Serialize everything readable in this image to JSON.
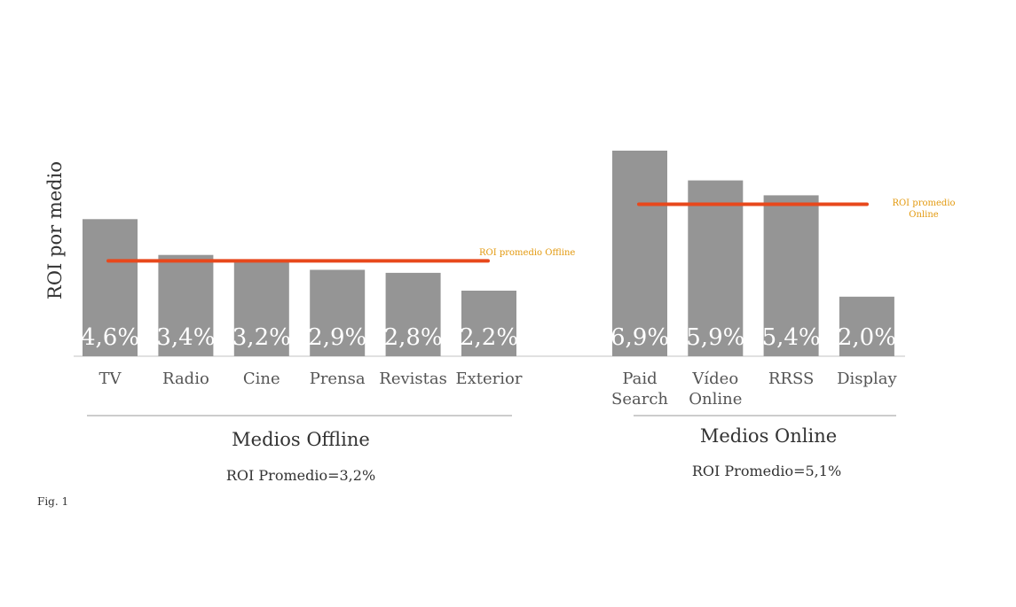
{
  "chart_data": {
    "type": "bar",
    "ylabel": "ROI por medio",
    "caption": "Fig. 1",
    "groups": [
      {
        "name": "Medios Offline",
        "average_label": "ROI Promedio=3,2%",
        "average_line_label": [
          "ROI promedio Offline"
        ],
        "average_value": 3.2,
        "categories": [
          [
            "TV"
          ],
          [
            "Radio"
          ],
          [
            "Cine"
          ],
          [
            "Prensa"
          ],
          [
            "Revistas"
          ],
          [
            "Exterior"
          ]
        ],
        "values": [
          4.6,
          3.4,
          3.2,
          2.9,
          2.8,
          2.2
        ],
        "value_labels": [
          "4,6%",
          "3,4%",
          "3,2%",
          "2,9%",
          "2,8%",
          "2,2%"
        ]
      },
      {
        "name": "Medios Online",
        "average_label": "ROI Promedio=5,1%",
        "average_line_label": [
          "ROI promedio",
          "Online"
        ],
        "average_value": 5.1,
        "categories": [
          [
            "Paid",
            "Search"
          ],
          [
            "Vídeo",
            "Online"
          ],
          [
            "RRSS"
          ],
          [
            "Display"
          ]
        ],
        "values": [
          6.9,
          5.9,
          5.4,
          2.0
        ],
        "value_labels": [
          "6,9%",
          "5,9%",
          "5,4%",
          "2,0%"
        ]
      }
    ],
    "colors": {
      "bar": "#959595",
      "average_line": "#e8481c",
      "average_label": "#e39a10",
      "value_label": "#ffffff"
    },
    "ylim": [
      0,
      7
    ],
    "grid": false,
    "legend": "none"
  }
}
